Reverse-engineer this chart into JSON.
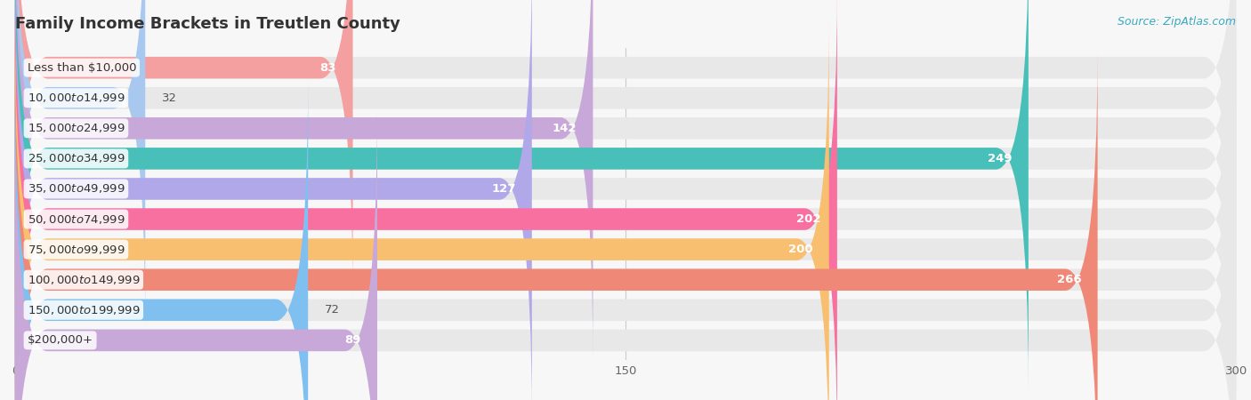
{
  "title": "Family Income Brackets in Treutlen County",
  "source": "Source: ZipAtlas.com",
  "categories": [
    "Less than $10,000",
    "$10,000 to $14,999",
    "$15,000 to $24,999",
    "$25,000 to $34,999",
    "$35,000 to $49,999",
    "$50,000 to $74,999",
    "$75,000 to $99,999",
    "$100,000 to $149,999",
    "$150,000 to $199,999",
    "$200,000+"
  ],
  "values": [
    83,
    32,
    142,
    249,
    127,
    202,
    200,
    266,
    72,
    89
  ],
  "bar_colors": [
    "#F4A0A0",
    "#A8C8F0",
    "#C8A8D8",
    "#48BFB8",
    "#B0A8E8",
    "#F870A0",
    "#F8BF70",
    "#F08878",
    "#80C0F0",
    "#C8A8D8"
  ],
  "xlim_data": [
    0,
    300
  ],
  "xticks": [
    0,
    150,
    300
  ],
  "background_color": "#f7f7f7",
  "bar_bg_color": "#e8e8e8",
  "row_bg_color": "#f0f0f0",
  "title_fontsize": 13,
  "label_fontsize": 9.5,
  "value_fontsize": 9.5,
  "source_fontsize": 9,
  "label_box_color": "#ffffff",
  "value_inside_color": "#ffffff",
  "value_outside_color": "#555555",
  "inside_threshold": 80
}
